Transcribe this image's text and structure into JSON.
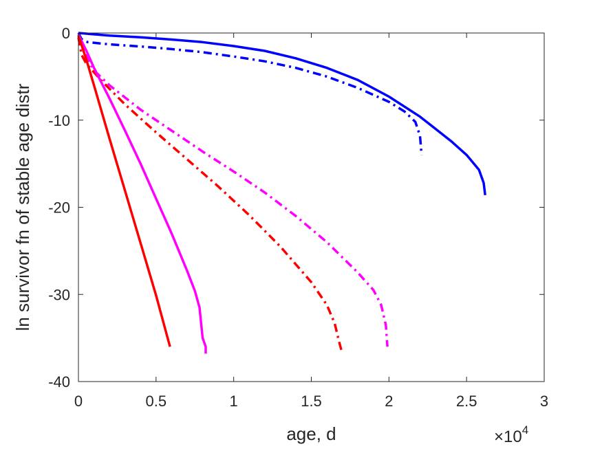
{
  "chart_data": {
    "type": "line",
    "title": "",
    "xlabel": "age, d",
    "ylabel": "ln survivor fn of stable age distr",
    "x_exponent_base": "×10",
    "x_exponent_power": "4",
    "xlim": [
      0,
      30000
    ],
    "ylim": [
      -40,
      0
    ],
    "xticks": [
      0,
      5000,
      10000,
      15000,
      20000,
      25000,
      30000
    ],
    "xtick_labels": [
      "0",
      "0.5",
      "1",
      "1.5",
      "2",
      "2.5",
      "3"
    ],
    "yticks": [
      0,
      -10,
      -20,
      -30,
      -40
    ],
    "ytick_labels": [
      "0",
      "-10",
      "-20",
      "-30",
      "-40"
    ],
    "grid": false,
    "series": [
      {
        "color": "#0000ff",
        "style": "solid",
        "points": [
          [
            0,
            0
          ],
          [
            2000,
            -0.3
          ],
          [
            4000,
            -0.5
          ],
          [
            6000,
            -0.75
          ],
          [
            8000,
            -1.05
          ],
          [
            10000,
            -1.5
          ],
          [
            12000,
            -2.05
          ],
          [
            14000,
            -2.9
          ],
          [
            16000,
            -4.0
          ],
          [
            18000,
            -5.4
          ],
          [
            20000,
            -7.3
          ],
          [
            22000,
            -9.6
          ],
          [
            24000,
            -12.4
          ],
          [
            25000,
            -14.0
          ],
          [
            25800,
            -15.7
          ],
          [
            26100,
            -17.2
          ],
          [
            26200,
            -18.6
          ]
        ]
      },
      {
        "color": "#0000ff",
        "style": "dashdot",
        "points": [
          [
            0,
            0
          ],
          [
            200,
            -0.7
          ],
          [
            600,
            -1.05
          ],
          [
            2000,
            -1.3
          ],
          [
            4000,
            -1.55
          ],
          [
            6000,
            -1.85
          ],
          [
            8000,
            -2.2
          ],
          [
            10000,
            -2.7
          ],
          [
            12000,
            -3.25
          ],
          [
            14000,
            -4.0
          ],
          [
            16000,
            -5.0
          ],
          [
            18000,
            -6.3
          ],
          [
            20000,
            -7.9
          ],
          [
            21000,
            -9.0
          ],
          [
            21700,
            -10.2
          ],
          [
            22000,
            -11.8
          ],
          [
            22100,
            -14.0
          ]
        ]
      },
      {
        "color": "#ff00ff",
        "style": "dashdot",
        "points": [
          [
            0,
            -0.5
          ],
          [
            300,
            -1.8
          ],
          [
            1000,
            -4.3
          ],
          [
            2000,
            -6.0
          ],
          [
            4000,
            -8.8
          ],
          [
            6000,
            -11.2
          ],
          [
            8000,
            -13.6
          ],
          [
            10000,
            -15.9
          ],
          [
            12000,
            -18.3
          ],
          [
            14000,
            -21.0
          ],
          [
            16000,
            -24.0
          ],
          [
            18000,
            -27.5
          ],
          [
            19000,
            -29.5
          ],
          [
            19500,
            -31.2
          ],
          [
            19800,
            -33.5
          ],
          [
            19900,
            -36.0
          ]
        ]
      },
      {
        "color": "#ff0000",
        "style": "dashdot",
        "points": [
          [
            0,
            -0.5
          ],
          [
            200,
            -2.5
          ],
          [
            500,
            -3.5
          ],
          [
            1500,
            -5.5
          ],
          [
            3000,
            -8.2
          ],
          [
            5000,
            -11.4
          ],
          [
            7000,
            -14.5
          ],
          [
            9000,
            -17.6
          ],
          [
            11000,
            -20.9
          ],
          [
            13000,
            -24.5
          ],
          [
            15000,
            -28.6
          ],
          [
            16000,
            -31.2
          ],
          [
            16500,
            -33.3
          ],
          [
            16800,
            -35.5
          ],
          [
            17000,
            -36.8
          ]
        ]
      },
      {
        "color": "#ff00ff",
        "style": "solid",
        "points": [
          [
            0,
            -0.2
          ],
          [
            500,
            -2.0
          ],
          [
            1000,
            -4.0
          ],
          [
            2000,
            -7.5
          ],
          [
            3000,
            -11.2
          ],
          [
            4000,
            -15.0
          ],
          [
            5000,
            -19.0
          ],
          [
            6000,
            -23.0
          ],
          [
            7000,
            -27.3
          ],
          [
            7500,
            -29.6
          ],
          [
            7800,
            -31.5
          ],
          [
            8000,
            -35.0
          ],
          [
            8200,
            -36.0
          ],
          [
            8200,
            -36.8
          ]
        ]
      },
      {
        "color": "#ff0000",
        "style": "solid",
        "points": [
          [
            0,
            -0.3
          ],
          [
            500,
            -3.0
          ],
          [
            1000,
            -6.0
          ],
          [
            2000,
            -12.1
          ],
          [
            3000,
            -18.1
          ],
          [
            4000,
            -24.1
          ],
          [
            5000,
            -30.1
          ],
          [
            5900,
            -36.0
          ]
        ]
      }
    ]
  }
}
